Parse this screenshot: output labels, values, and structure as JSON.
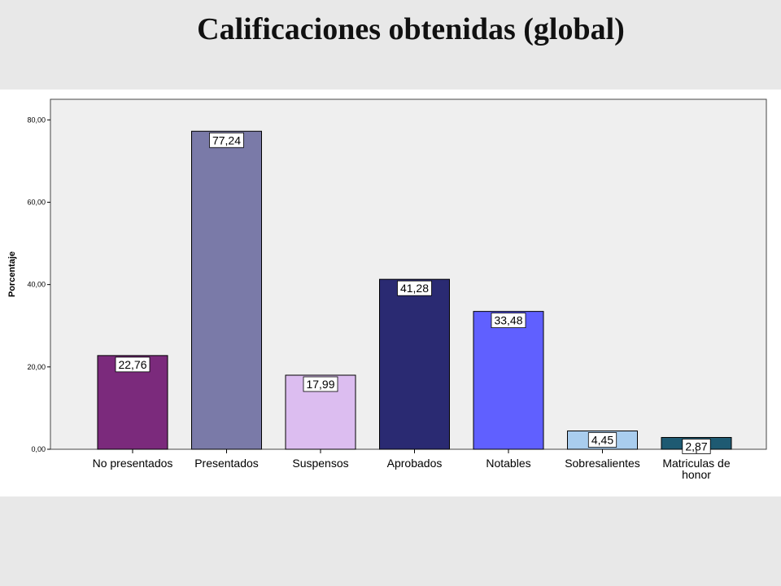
{
  "slide": {
    "title": "Calificaciones obtenidas (global)"
  },
  "chart_data": {
    "type": "bar",
    "title": "",
    "xlabel": "",
    "ylabel": "Porcentaje",
    "ylim": [
      0,
      85
    ],
    "yticks": [
      0,
      20,
      40,
      60,
      80
    ],
    "ytick_labels": [
      "0,00",
      "20,00",
      "40,00",
      "60,00",
      "80,00"
    ],
    "grid": false,
    "categories": [
      [
        "No presentados"
      ],
      [
        "Presentados"
      ],
      [
        "Suspensos"
      ],
      [
        "Aprobados"
      ],
      [
        "Notables"
      ],
      [
        "Sobresalientes"
      ],
      [
        "Matriculas de",
        "honor"
      ]
    ],
    "values": [
      22.76,
      77.24,
      17.99,
      41.28,
      33.48,
      4.45,
      2.87
    ],
    "value_labels": [
      "22,76",
      "77,24",
      "17,99",
      "41,28",
      "33,48",
      "4,45",
      "2,87"
    ],
    "colors": [
      "#7b2a7c",
      "#7a7aa8",
      "#dcbdf0",
      "#2a2a72",
      "#6060ff",
      "#a9cdee",
      "#1e5a72"
    ],
    "plot_background": "#efefef"
  }
}
